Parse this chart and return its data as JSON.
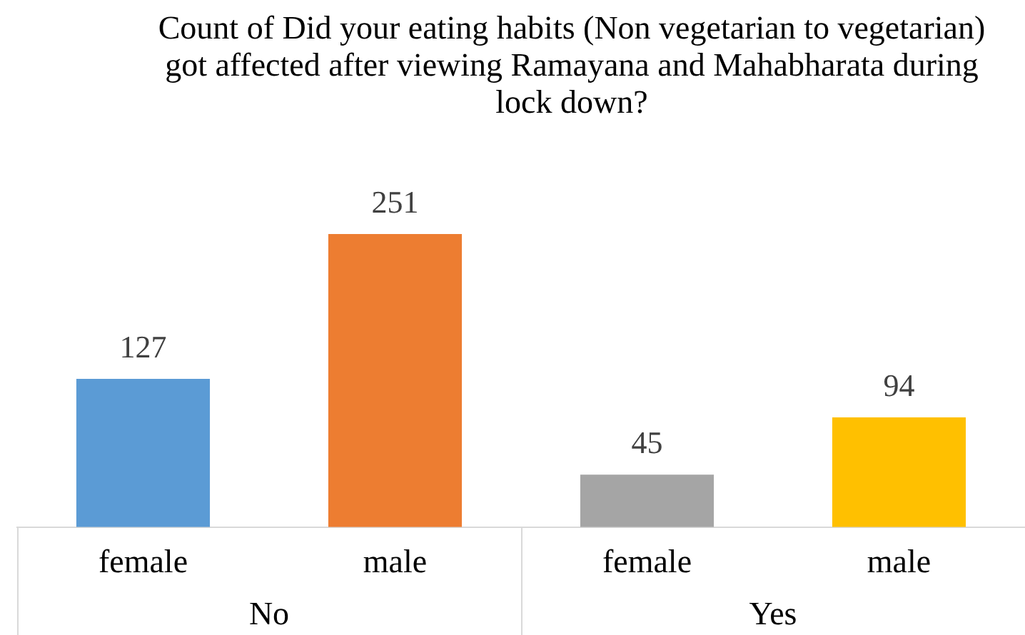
{
  "chart_data": {
    "type": "bar",
    "title": "Count of Did your eating habits (Non vegetarian to vegetarian) got affected after viewing Ramayana and Mahabharata during lock down?",
    "categories": [
      "female",
      "male",
      "female",
      "male"
    ],
    "values": [
      127,
      251,
      45,
      94
    ],
    "colors": [
      "#5b9bd5",
      "#ed7d31",
      "#a5a5a5",
      "#ffc000"
    ],
    "data_labels": true,
    "annotations": [
      "No",
      "Yes"
    ]
  }
}
